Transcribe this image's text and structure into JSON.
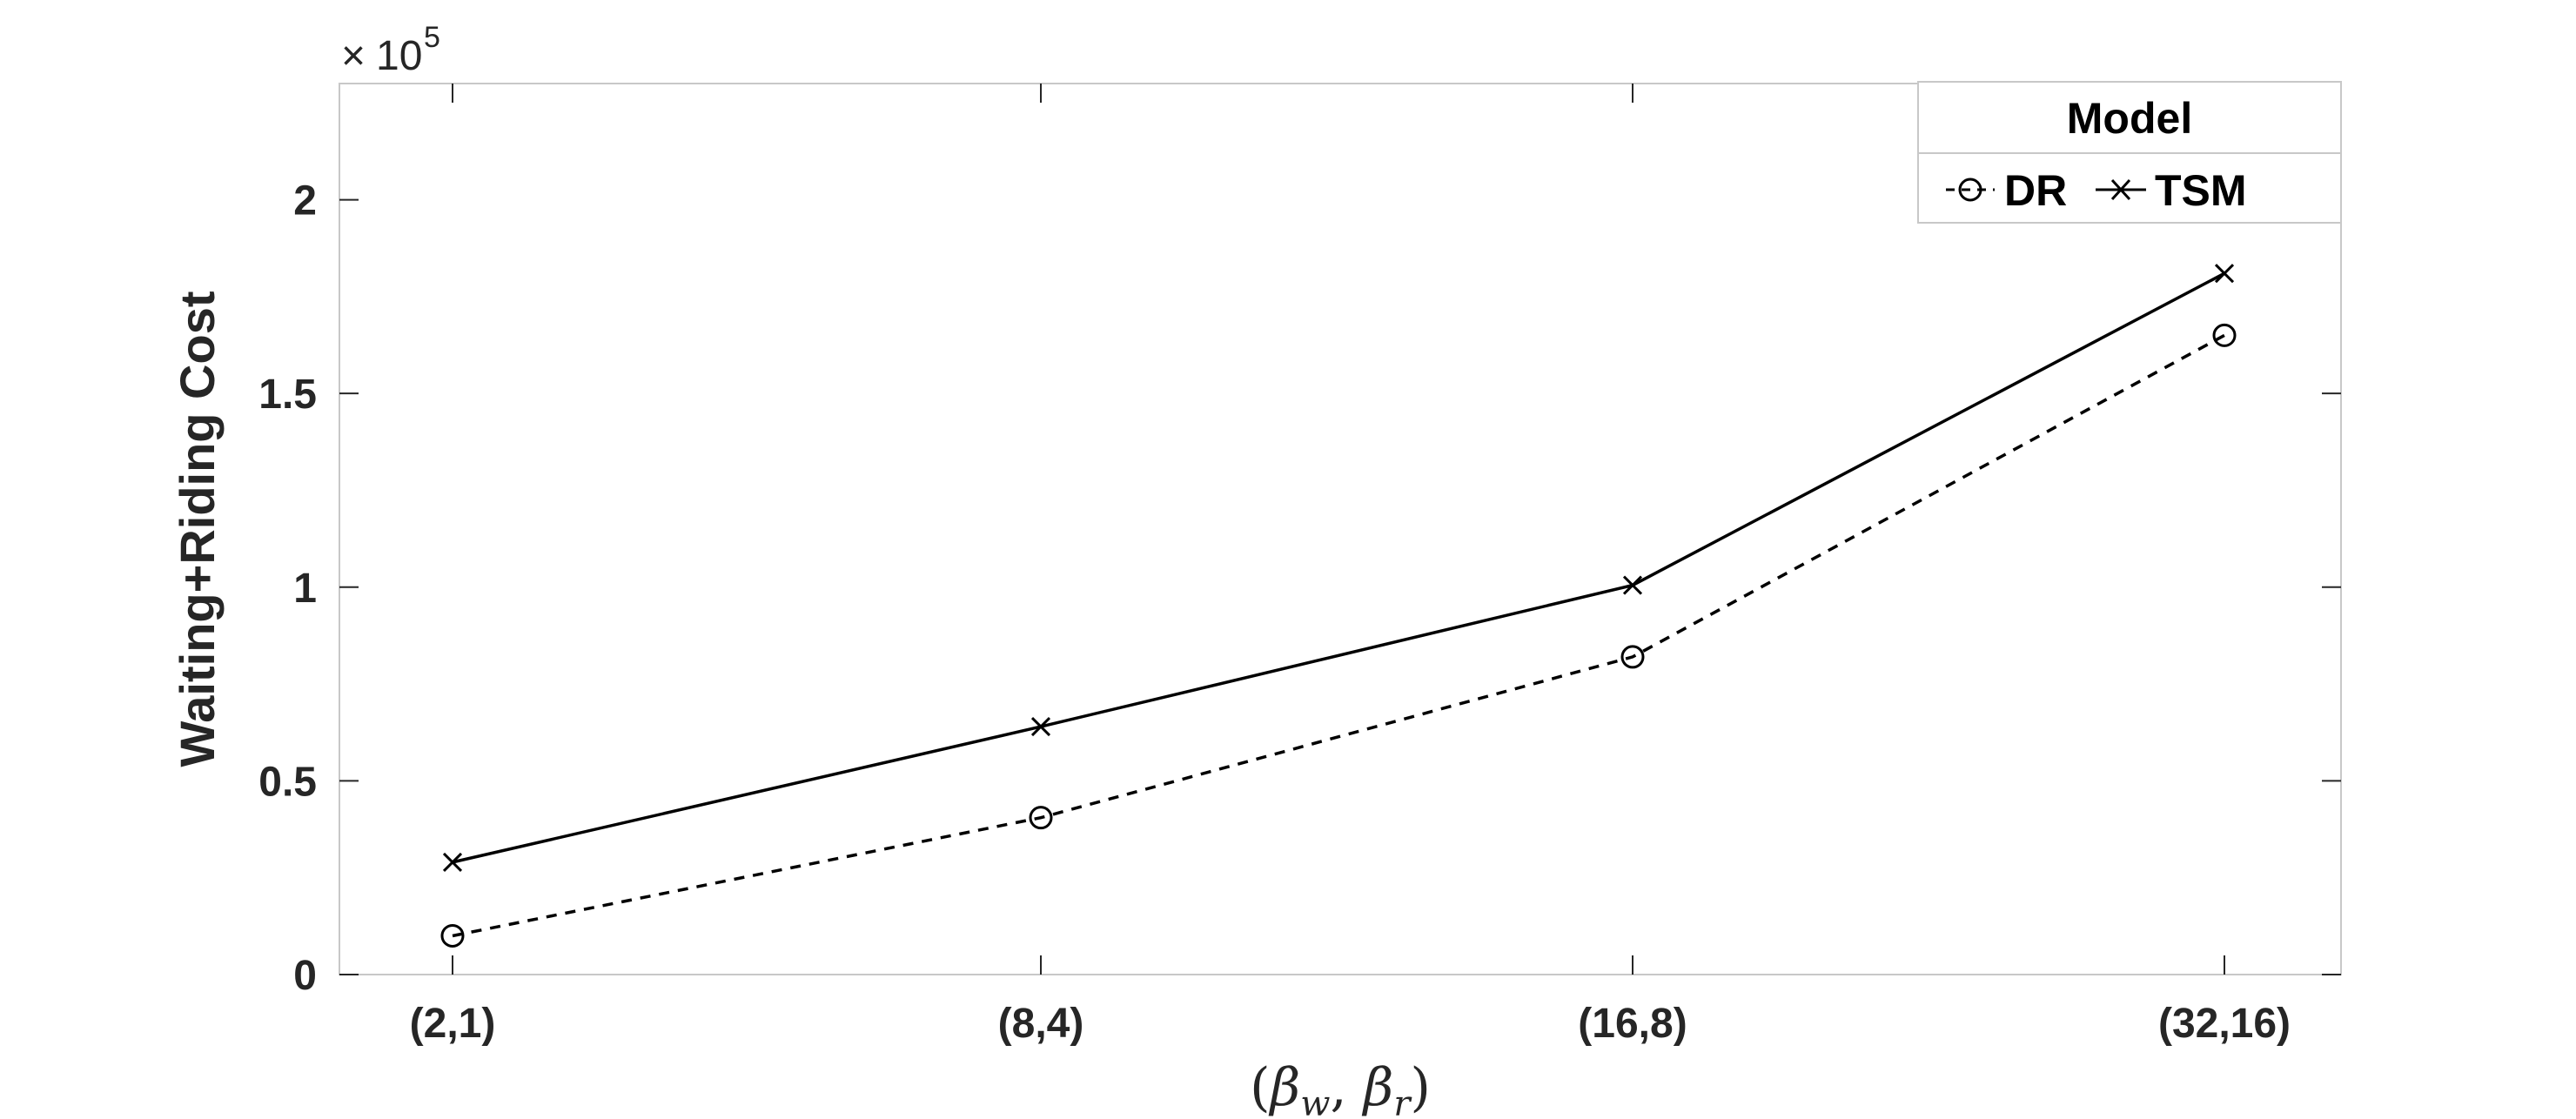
{
  "chart_data": {
    "type": "line",
    "categories": [
      "(2,1)",
      "(8,4)",
      "(16,8)",
      "(32,16)"
    ],
    "series": [
      {
        "name": "DR",
        "values": [
          10000,
          40500,
          82000,
          165000
        ],
        "marker": "circle",
        "line_style": "dashed",
        "color": "#000000"
      },
      {
        "name": "TSM",
        "values": [
          29000,
          64000,
          100500,
          181000
        ],
        "marker": "x",
        "line_style": "solid",
        "color": "#000000"
      }
    ],
    "ylabel": "Waiting+Riding Cost",
    "xlabel": "(βw, βr)",
    "xlabel_parts": {
      "open": "(",
      "b1": "β",
      "s1": "w",
      "comma": ", ",
      "b2": "β",
      "s2": "r",
      "close": ")"
    },
    "ylim": [
      0,
      230000
    ],
    "yticks": [
      0,
      50000,
      100000,
      150000,
      200000
    ],
    "ytick_labels": [
      "0",
      "0.5",
      "1",
      "1.5",
      "2"
    ],
    "y_exponent": {
      "times": "×",
      "base": "10",
      "power": "5"
    },
    "legend": {
      "title": "Model",
      "placement": "top-right"
    },
    "grid": false
  }
}
